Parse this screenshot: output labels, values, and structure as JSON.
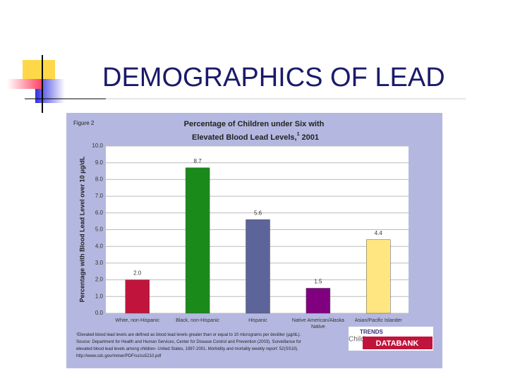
{
  "slide_title": "DEMOGRAPHICS OF LEAD",
  "chart_data": {
    "type": "bar",
    "figure_label": "Figure 2",
    "title": "Percentage of Children under Six with",
    "title_line2": "Elevated Blood Lead Levels,",
    "title_footnote_mark": "1",
    "title_year": "2001",
    "y_label": "Percentage with Blood Lead Level over 10 µg/dL",
    "categories": [
      "White, non-Hispanic",
      "Black, non-Hispanic",
      "Hispanic",
      "Native American/Alaska Native",
      "Asian/Pacific Islander"
    ],
    "values": [
      2.0,
      8.7,
      5.6,
      1.5,
      4.4
    ],
    "value_labels": [
      "2.0",
      "8.7",
      "5.6",
      "1.5",
      "4.4"
    ],
    "colors": [
      "#c0143c",
      "#1a8a1a",
      "#5c6499",
      "#800080",
      "#ffe680"
    ],
    "ylim": [
      0,
      10
    ],
    "yticks": [
      {
        "value": 0,
        "label": "0.0"
      },
      {
        "value": 1,
        "label": "1.0"
      },
      {
        "value": 2,
        "label": "2.0"
      },
      {
        "value": 3,
        "label": "3.0"
      },
      {
        "value": 4,
        "label": "4.0"
      },
      {
        "value": 5,
        "label": "5.0"
      },
      {
        "value": 6,
        "label": "6.0"
      },
      {
        "value": 7,
        "label": "7.0"
      },
      {
        "value": 8,
        "label": "8.0"
      },
      {
        "value": 9,
        "label": "9.0"
      },
      {
        "value": 10,
        "label": "10.0"
      }
    ],
    "grid": true,
    "footnotes": [
      "¹Elevated blood lead levels are defined as blood lead levels greater than or equal to 10 micrograms per deciliter (µg/dL).",
      "Source: Department for Health and Human Services, Center for Disease Control and Prevention (2003). Surveillance for",
      "elevated blood lead levels among children- United States, 1997-2001. Morbidity and mortality weekly report: 52(SS10).",
      "http://www.cdc.gov/mmwr/PDF/ss/ss5210.pdf"
    ],
    "logo": {
      "top": "TRENDS",
      "left": "Child",
      "bottom": "DATABANK"
    }
  }
}
